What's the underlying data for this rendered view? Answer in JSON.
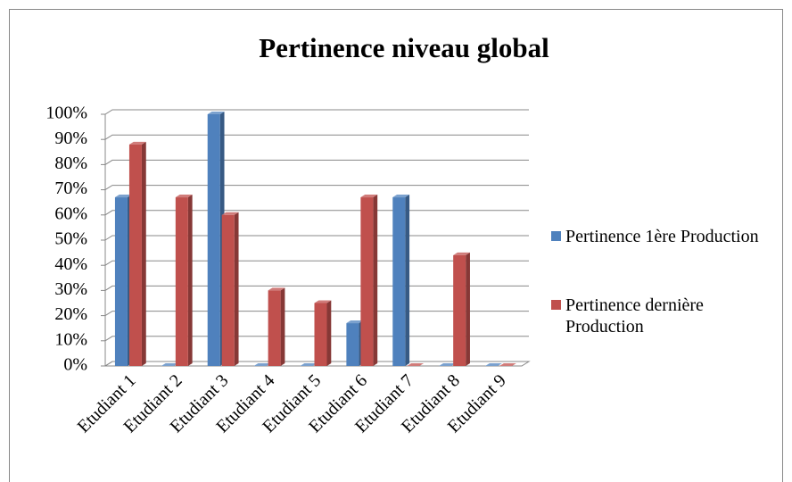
{
  "chart_data": {
    "type": "bar3d",
    "title": "Pertinence niveau global",
    "categories": [
      "Etudiant 1",
      "Etudiant 2",
      "Etudiant 3",
      "Etudiant 4",
      "Etudiant 5",
      "Etudiant 6",
      "Etudiant 7",
      "Etudiant 8",
      "Etudiant 9"
    ],
    "series": [
      {
        "name": "Pertinence 1ère Production",
        "color": "#4f81bd",
        "values": [
          67,
          0,
          100,
          0,
          0,
          17,
          67,
          0,
          0
        ]
      },
      {
        "name": "Pertinence dernière Production",
        "color": "#c0504d",
        "values": [
          88,
          67,
          60,
          30,
          25,
          67,
          0,
          44,
          0
        ]
      }
    ],
    "ylim": [
      0,
      100
    ],
    "yticks": [
      {
        "value": 0,
        "label": "0%"
      },
      {
        "value": 10,
        "label": "10%"
      },
      {
        "value": 20,
        "label": "20%"
      },
      {
        "value": 30,
        "label": "30%"
      },
      {
        "value": 40,
        "label": "40%"
      },
      {
        "value": 50,
        "label": "50%"
      },
      {
        "value": 60,
        "label": "60%"
      },
      {
        "value": 70,
        "label": "70%"
      },
      {
        "value": 80,
        "label": "80%"
      },
      {
        "value": 90,
        "label": "90%"
      },
      {
        "value": 100,
        "label": "100%"
      }
    ],
    "grid": true,
    "legend": "right"
  }
}
